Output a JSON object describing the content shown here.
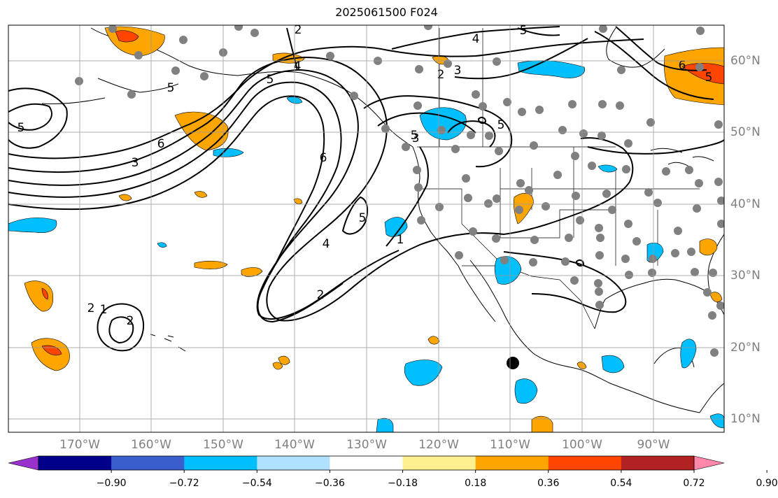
{
  "title": "2025061500 F024",
  "lon_labels": [
    "170°W",
    "160°W",
    "150°W",
    "140°W",
    "130°W",
    "120°W",
    "110°W",
    "100°W",
    "90°W"
  ],
  "lat_labels": [
    "60°N",
    "50°N",
    "40°N",
    "30°N",
    "20°N",
    "10°N"
  ],
  "contour_labels": [
    "2",
    "2",
    "3",
    "4",
    "4",
    "2",
    "3",
    "5",
    "5",
    "6",
    "5",
    "6",
    "5",
    "6",
    "3",
    "2",
    "4",
    "5",
    "1",
    "2",
    "1",
    "5",
    "5",
    "5"
  ],
  "colorbar": {
    "colors": [
      "#9932cc",
      "#00008b",
      "#3a5fcd",
      "#00bfff",
      "#b0e2ff",
      "#ffffff",
      "#fff08f",
      "#ffa500",
      "#ff4500",
      "#b22222",
      "#ff88aa"
    ],
    "tick_labels": [
      "−0.90",
      "−0.72",
      "−0.54",
      "−0.36",
      "−0.18",
      "0.18",
      "0.36",
      "0.54",
      "0.72",
      "0.90"
    ]
  }
}
